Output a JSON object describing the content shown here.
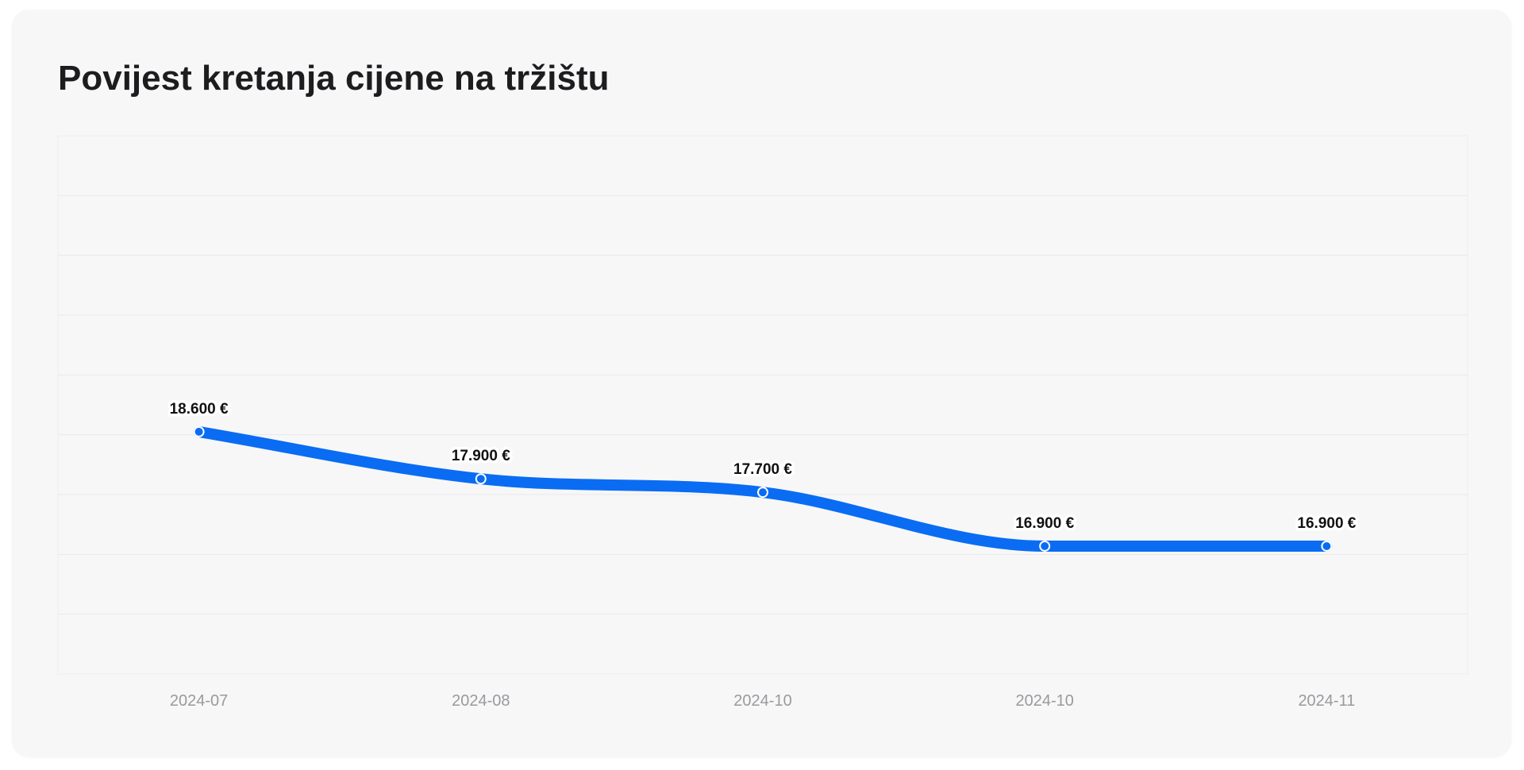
{
  "chart_data": {
    "type": "line",
    "title": "Povijest kretanja cijene na tržištu",
    "categories": [
      "2024-07",
      "2024-08",
      "2024-10",
      "2024-10",
      "2024-11"
    ],
    "values": [
      18600,
      17900,
      17700,
      16900,
      16900
    ],
    "value_labels": [
      "18.600 €",
      "17.900 €",
      "17.700 €",
      "16.900 €",
      "16.900 €"
    ],
    "color": "#0a6cf2",
    "ylim": [
      15000,
      23000
    ],
    "grid": true
  }
}
